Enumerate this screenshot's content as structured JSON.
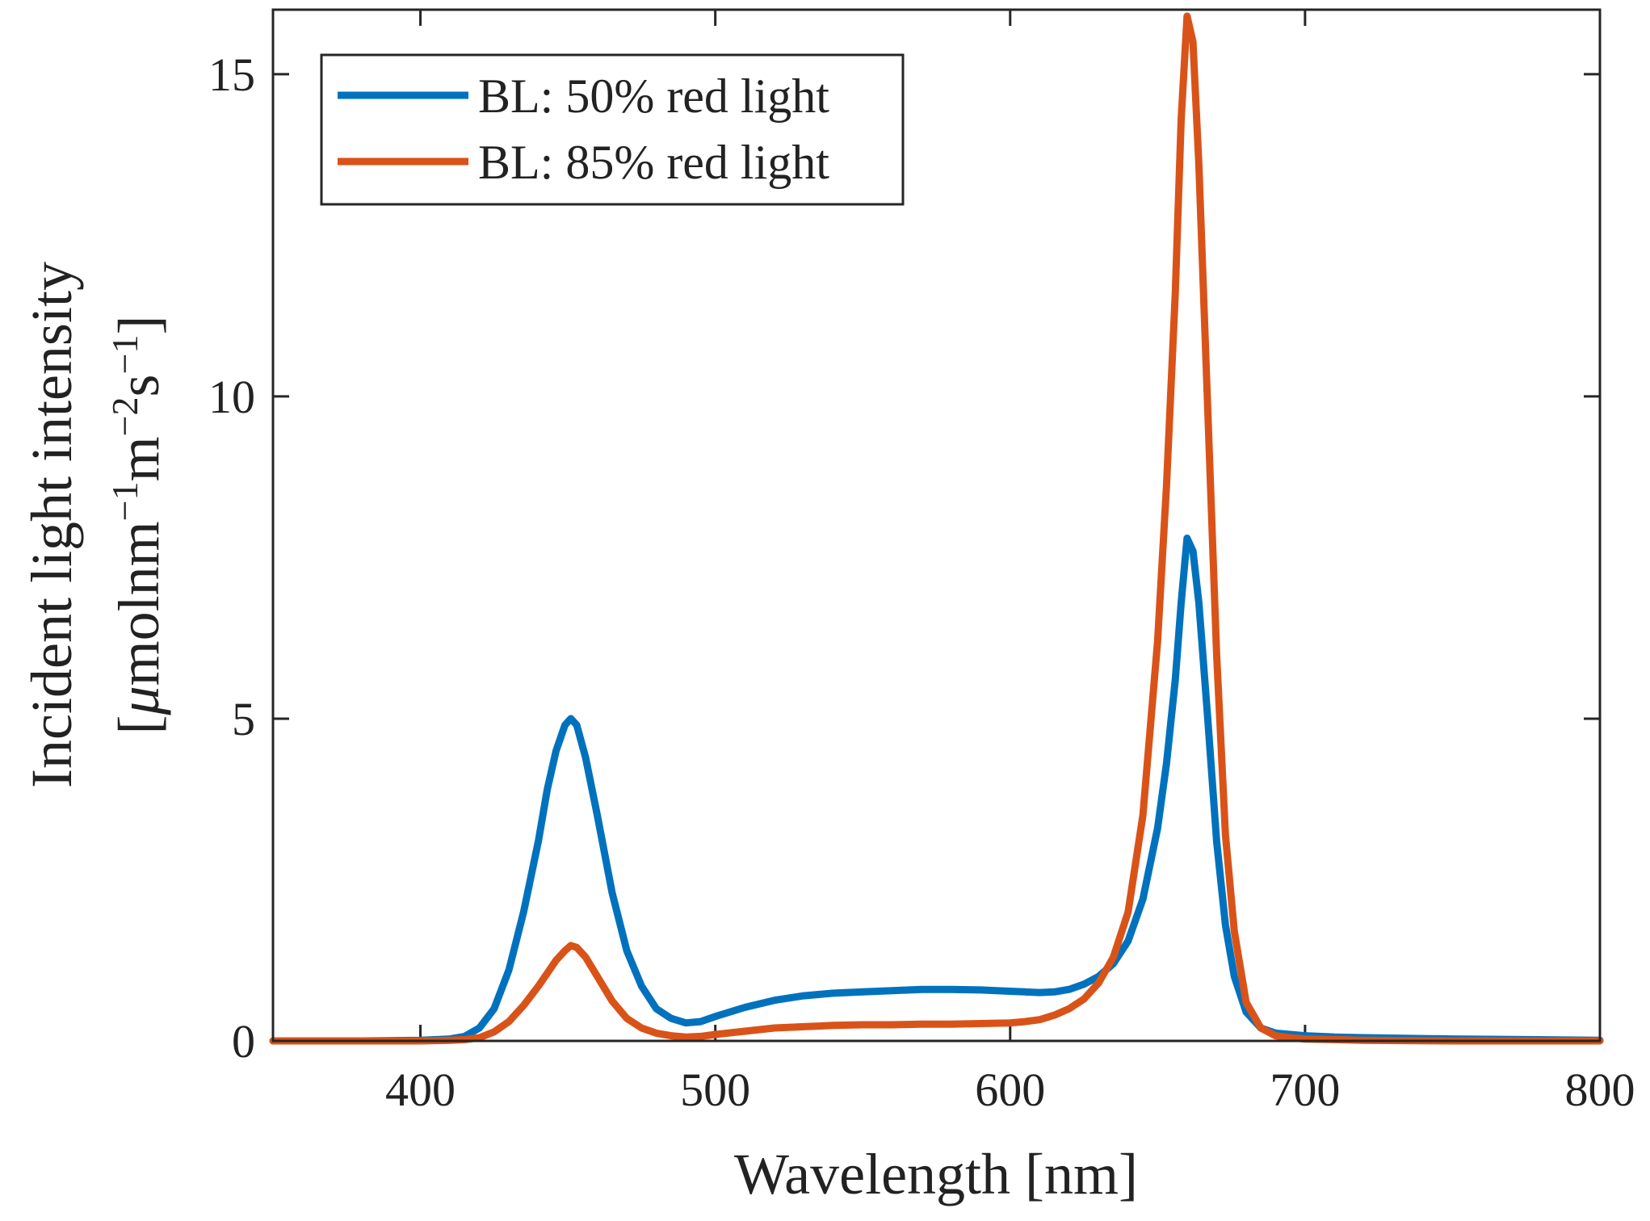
{
  "chart_data": {
    "type": "line",
    "title": "",
    "xlabel": "Wavelength [nm]",
    "ylabel_line1": "Incident light intensity",
    "ylabel_line2_open": "[",
    "ylabel_line2_mu": "μ",
    "ylabel_line2_mol": "molnm",
    "ylabel_line2_sup1": "−1",
    "ylabel_line2_m": "m",
    "ylabel_line2_sup2": "−2",
    "ylabel_line2_s": "s",
    "ylabel_line2_sup3": "−1",
    "ylabel_line2_close": "]",
    "xlim": [
      350,
      800
    ],
    "ylim": [
      0,
      16
    ],
    "xticks": [
      400,
      500,
      600,
      700,
      800
    ],
    "xtick_labels": [
      "400",
      "500",
      "600",
      "700",
      "800"
    ],
    "yticks": [
      0,
      5,
      10,
      15
    ],
    "ytick_labels": [
      "0",
      "5",
      "10",
      "15"
    ],
    "grid": false,
    "legend_position": "top-left",
    "x": [
      350,
      380,
      400,
      410,
      415,
      420,
      425,
      430,
      435,
      440,
      443,
      446,
      449,
      451,
      453,
      456,
      460,
      465,
      470,
      475,
      480,
      485,
      490,
      495,
      500,
      510,
      520,
      530,
      540,
      550,
      560,
      570,
      580,
      590,
      600,
      605,
      610,
      615,
      620,
      625,
      630,
      635,
      640,
      645,
      650,
      653,
      656,
      658,
      660,
      662,
      664,
      667,
      670,
      673,
      676,
      680,
      685,
      690,
      695,
      700,
      710,
      720,
      750,
      800
    ],
    "series": [
      {
        "name": "BL: 50% red light",
        "color": "#0072BD",
        "values": [
          0,
          0,
          0.01,
          0.03,
          0.07,
          0.2,
          0.5,
          1.1,
          2.0,
          3.1,
          3.9,
          4.5,
          4.9,
          5.0,
          4.9,
          4.4,
          3.5,
          2.3,
          1.4,
          0.85,
          0.5,
          0.35,
          0.28,
          0.3,
          0.38,
          0.52,
          0.63,
          0.7,
          0.74,
          0.76,
          0.78,
          0.8,
          0.8,
          0.79,
          0.77,
          0.76,
          0.75,
          0.76,
          0.8,
          0.88,
          1.0,
          1.2,
          1.55,
          2.2,
          3.3,
          4.3,
          5.6,
          6.8,
          7.8,
          7.6,
          6.8,
          5.0,
          3.1,
          1.8,
          1.0,
          0.45,
          0.2,
          0.12,
          0.1,
          0.08,
          0.06,
          0.05,
          0.03,
          0.01
        ]
      },
      {
        "name": "BL: 85% red light",
        "color": "#D95319",
        "values": [
          0,
          0,
          0,
          0.01,
          0.02,
          0.05,
          0.14,
          0.3,
          0.55,
          0.85,
          1.05,
          1.25,
          1.4,
          1.48,
          1.45,
          1.3,
          1.0,
          0.62,
          0.35,
          0.2,
          0.12,
          0.08,
          0.06,
          0.07,
          0.1,
          0.15,
          0.2,
          0.22,
          0.24,
          0.25,
          0.25,
          0.26,
          0.26,
          0.27,
          0.28,
          0.3,
          0.33,
          0.4,
          0.5,
          0.65,
          0.9,
          1.3,
          2.0,
          3.5,
          6.2,
          8.6,
          11.6,
          14.3,
          15.9,
          15.5,
          13.6,
          9.8,
          6.0,
          3.2,
          1.7,
          0.6,
          0.2,
          0.08,
          0.05,
          0.03,
          0.02,
          0.01,
          0,
          0
        ]
      }
    ]
  }
}
